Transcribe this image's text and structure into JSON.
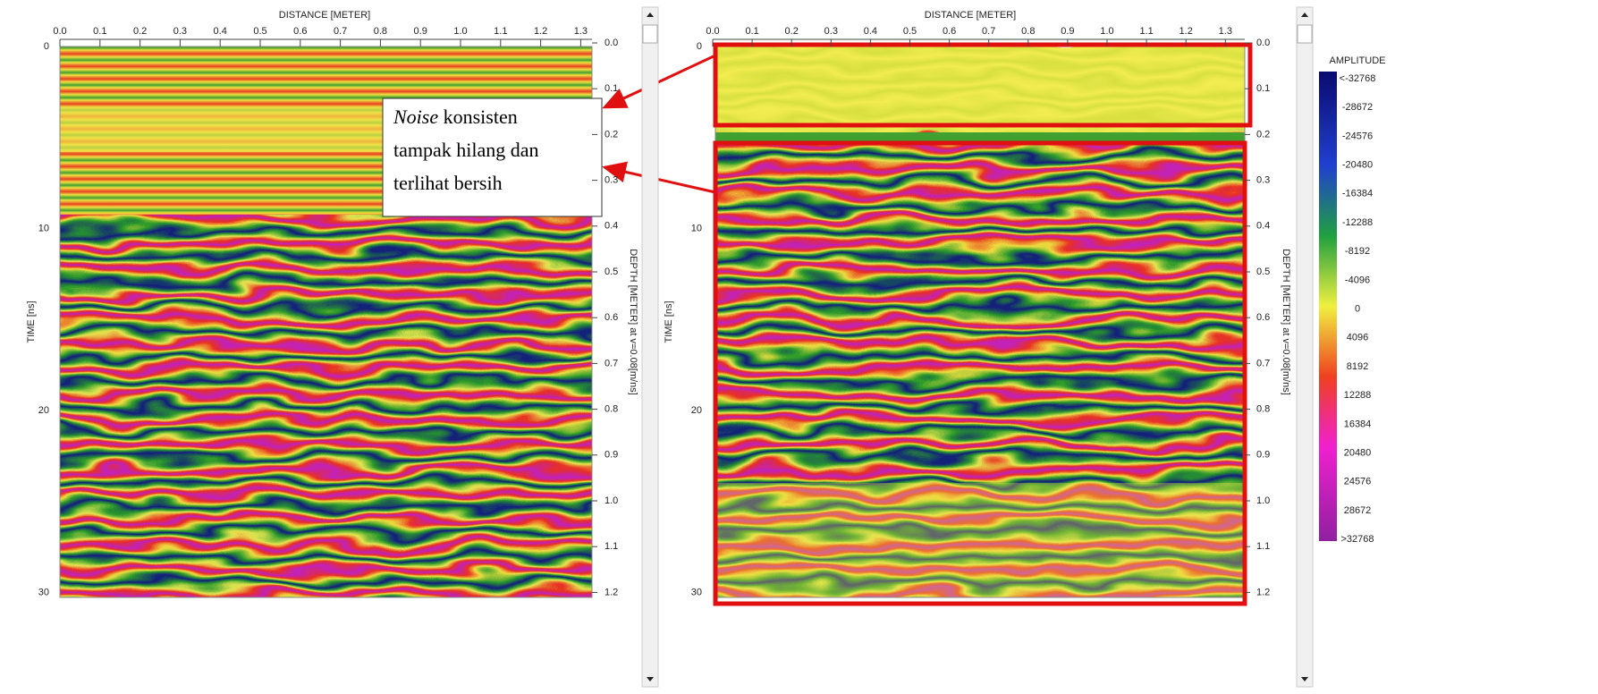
{
  "panels": [
    {
      "x_axis_title": "DISTANCE [METER]",
      "x_ticks": [
        "0.0",
        "0.1",
        "0.2",
        "0.3",
        "0.4",
        "0.5",
        "0.6",
        "0.7",
        "0.8",
        "0.9",
        "1.0",
        "1.1",
        "1.2",
        "1.3"
      ],
      "y_axis_title": "TIME [ns]",
      "y_ticks": [
        "0",
        "10",
        "20",
        "30"
      ],
      "y2_axis_title": "DEPTH [METER] at v=0.08[m/ns]",
      "y2_ticks": [
        "0.0",
        "0.1",
        "0.2",
        "0.3",
        "0.4",
        "0.5",
        "0.6",
        "0.7",
        "0.8",
        "0.9",
        "1.0",
        "1.1",
        "1.2"
      ]
    },
    {
      "x_axis_title": "DISTANCE [METER]",
      "x_ticks": [
        "0.0",
        "0.1",
        "0.2",
        "0.3",
        "0.4",
        "0.5",
        "0.6",
        "0.7",
        "0.8",
        "0.9",
        "1.0",
        "1.1",
        "1.2",
        "1.3"
      ],
      "y_axis_title": "TIME [ns]",
      "y_ticks": [
        "0",
        "10",
        "20",
        "30"
      ],
      "y2_axis_title": "DEPTH [METER] at v=0.08[m/ns]",
      "y2_ticks": [
        "0.0",
        "0.1",
        "0.2",
        "0.3",
        "0.4",
        "0.5",
        "0.6",
        "0.7",
        "0.8",
        "0.9",
        "1.0",
        "1.1",
        "1.2"
      ]
    }
  ],
  "colorbar": {
    "title": "AMPLITUDE",
    "labels": [
      "<-32768",
      "-28672",
      "-24576",
      "-20480",
      "-16384",
      "-12288",
      "-8192",
      "-4096",
      "0",
      "4096",
      "8192",
      "12288",
      "16384",
      "20480",
      "24576",
      "28672",
      ">32768"
    ]
  },
  "annotation": {
    "line1_italic": "Noise",
    "line1_rest": "konsisten",
    "line2": "tampak hilang dan",
    "line3": "terlihat bersih"
  }
}
